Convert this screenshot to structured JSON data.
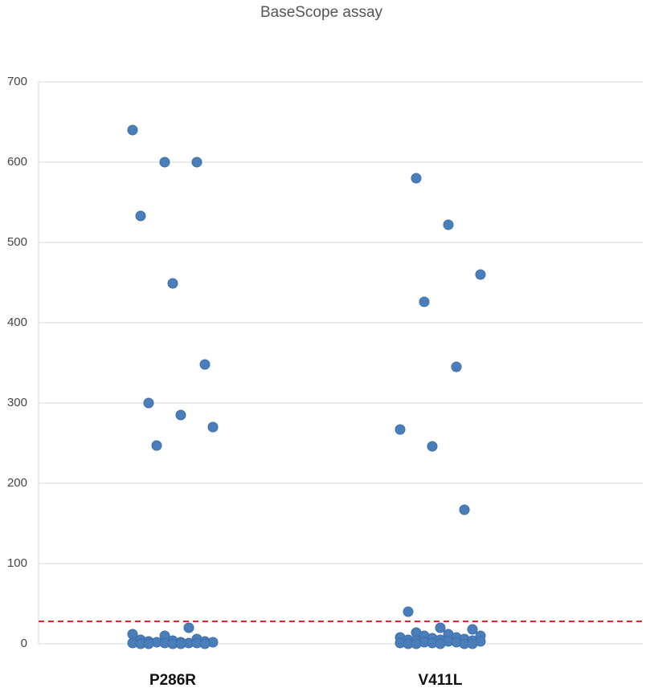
{
  "chart_data": {
    "type": "strip",
    "title": "BaseScope assay",
    "categories": [
      "P286R",
      "V411L"
    ],
    "values": [
      [
        640,
        600,
        600,
        533,
        449,
        348,
        300,
        285,
        270,
        247,
        20,
        12,
        10,
        6,
        5,
        4,
        3,
        3,
        2,
        2,
        2,
        1,
        1,
        1,
        1,
        0,
        0,
        0,
        0,
        0
      ],
      [
        580,
        522,
        460,
        426,
        345,
        267,
        246,
        167,
        40,
        20,
        18,
        14,
        12,
        10,
        10,
        8,
        8,
        7,
        6,
        5,
        5,
        4,
        4,
        3,
        3,
        2,
        2,
        1,
        1,
        0,
        0,
        0,
        0,
        0
      ]
    ],
    "color": "#4a7ebb",
    "threshold": {
      "value": 28,
      "color": "#e8262a"
    },
    "ylim": [
      0,
      700
    ],
    "yticks": [
      0,
      100,
      200,
      300,
      400,
      500,
      600,
      700
    ],
    "grid": true
  }
}
